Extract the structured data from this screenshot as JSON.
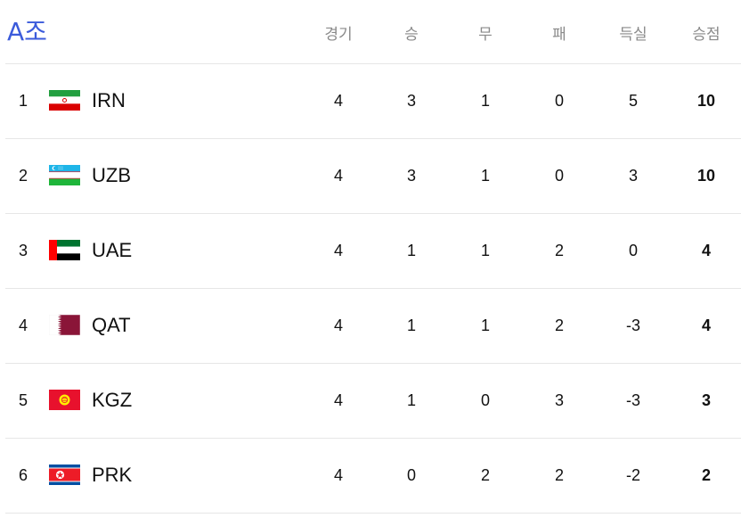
{
  "group": {
    "title": "A조"
  },
  "columns": {
    "played": "경기",
    "won": "승",
    "drawn": "무",
    "lost": "패",
    "goal_diff": "득실",
    "points": "승점"
  },
  "rows": [
    {
      "rank": "1",
      "team": "IRN",
      "flag": "iran-flag-icon",
      "played": "4",
      "won": "3",
      "drawn": "1",
      "lost": "0",
      "goal_diff": "5",
      "points": "10"
    },
    {
      "rank": "2",
      "team": "UZB",
      "flag": "uzbekistan-flag-icon",
      "played": "4",
      "won": "3",
      "drawn": "1",
      "lost": "0",
      "goal_diff": "3",
      "points": "10"
    },
    {
      "rank": "3",
      "team": "UAE",
      "flag": "uae-flag-icon",
      "played": "4",
      "won": "1",
      "drawn": "1",
      "lost": "2",
      "goal_diff": "0",
      "points": "4"
    },
    {
      "rank": "4",
      "team": "QAT",
      "flag": "qatar-flag-icon",
      "played": "4",
      "won": "1",
      "drawn": "1",
      "lost": "2",
      "goal_diff": "-3",
      "points": "4"
    },
    {
      "rank": "5",
      "team": "KGZ",
      "flag": "kyrgyzstan-flag-icon",
      "played": "4",
      "won": "1",
      "drawn": "0",
      "lost": "3",
      "goal_diff": "-3",
      "points": "3"
    },
    {
      "rank": "6",
      "team": "PRK",
      "flag": "north-korea-flag-icon",
      "played": "4",
      "won": "0",
      "drawn": "2",
      "lost": "2",
      "goal_diff": "-2",
      "points": "2"
    }
  ],
  "colors": {
    "title_accent": "#3b5bdb",
    "header_text": "#8a8a8a",
    "divider": "#e6e6e6"
  }
}
